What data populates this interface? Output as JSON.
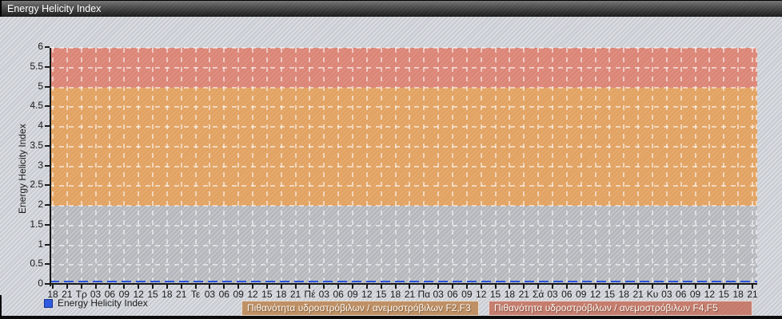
{
  "window": {
    "title": "Energy Helicity Index"
  },
  "legend": {
    "series_label": "Energy Helicity Index",
    "series_color": "#2e5be0",
    "risk_boxes": [
      {
        "label": "Πιθανότητα υδροστρόβιλων / ανεμοστρόβιλων F2,F3",
        "color": "#bd8e62"
      },
      {
        "label": "Πιθανότητα υδροστρόβιλων / ανεμοστρόβιλων F4,F5",
        "color": "#c47b6c"
      }
    ]
  },
  "chart_data": {
    "type": "line",
    "title": "Energy Helicity Index",
    "xlabel": "",
    "ylabel": "Energy Helicity Index",
    "ylim": [
      0,
      6
    ],
    "grid": true,
    "legend_position": "bottom-left",
    "y_ticks": [
      "0",
      "0.5",
      "1",
      "1.5",
      "2",
      "2.5",
      "3",
      "3.5",
      "4",
      "4.5",
      "5",
      "5.5",
      "6"
    ],
    "x_tick_labels": [
      "18",
      "21",
      "Τρ",
      "03",
      "06",
      "09",
      "12",
      "15",
      "18",
      "21",
      "Τε",
      "03",
      "06",
      "09",
      "12",
      "15",
      "18",
      "21",
      "Πέ",
      "03",
      "06",
      "09",
      "12",
      "15",
      "18",
      "21",
      "Πα",
      "03",
      "06",
      "09",
      "12",
      "15",
      "18",
      "21",
      "Σά",
      "03",
      "06",
      "09",
      "12",
      "15",
      "18",
      "21",
      "Κυ",
      "03",
      "06",
      "09",
      "12",
      "15",
      "18",
      "21"
    ],
    "series": [
      {
        "name": "Energy Helicity Index",
        "color": "#2853d8",
        "values": [
          0,
          0,
          0,
          0,
          0,
          0,
          0,
          0,
          0,
          0,
          0,
          0,
          0,
          0,
          0,
          0,
          0,
          0,
          0,
          0,
          0,
          0,
          0,
          0,
          0,
          0,
          0,
          0,
          0,
          0,
          0,
          0,
          0,
          0,
          0,
          0,
          0,
          0,
          0,
          0,
          0,
          0,
          0,
          0,
          0,
          0,
          0,
          0,
          0,
          0
        ]
      }
    ],
    "bands": [
      {
        "label": "Πιθανότητα υδροστρόβιλων / ανεμοστρόβιλων F2,F3",
        "from": 2,
        "to": 5,
        "color": "#e2a261"
      },
      {
        "label": "Πιθανότητα υδροστρόβιλων / ανεμοστρόβιλων F4,F5",
        "from": 5,
        "to": 6,
        "color": "#db8576"
      }
    ]
  }
}
